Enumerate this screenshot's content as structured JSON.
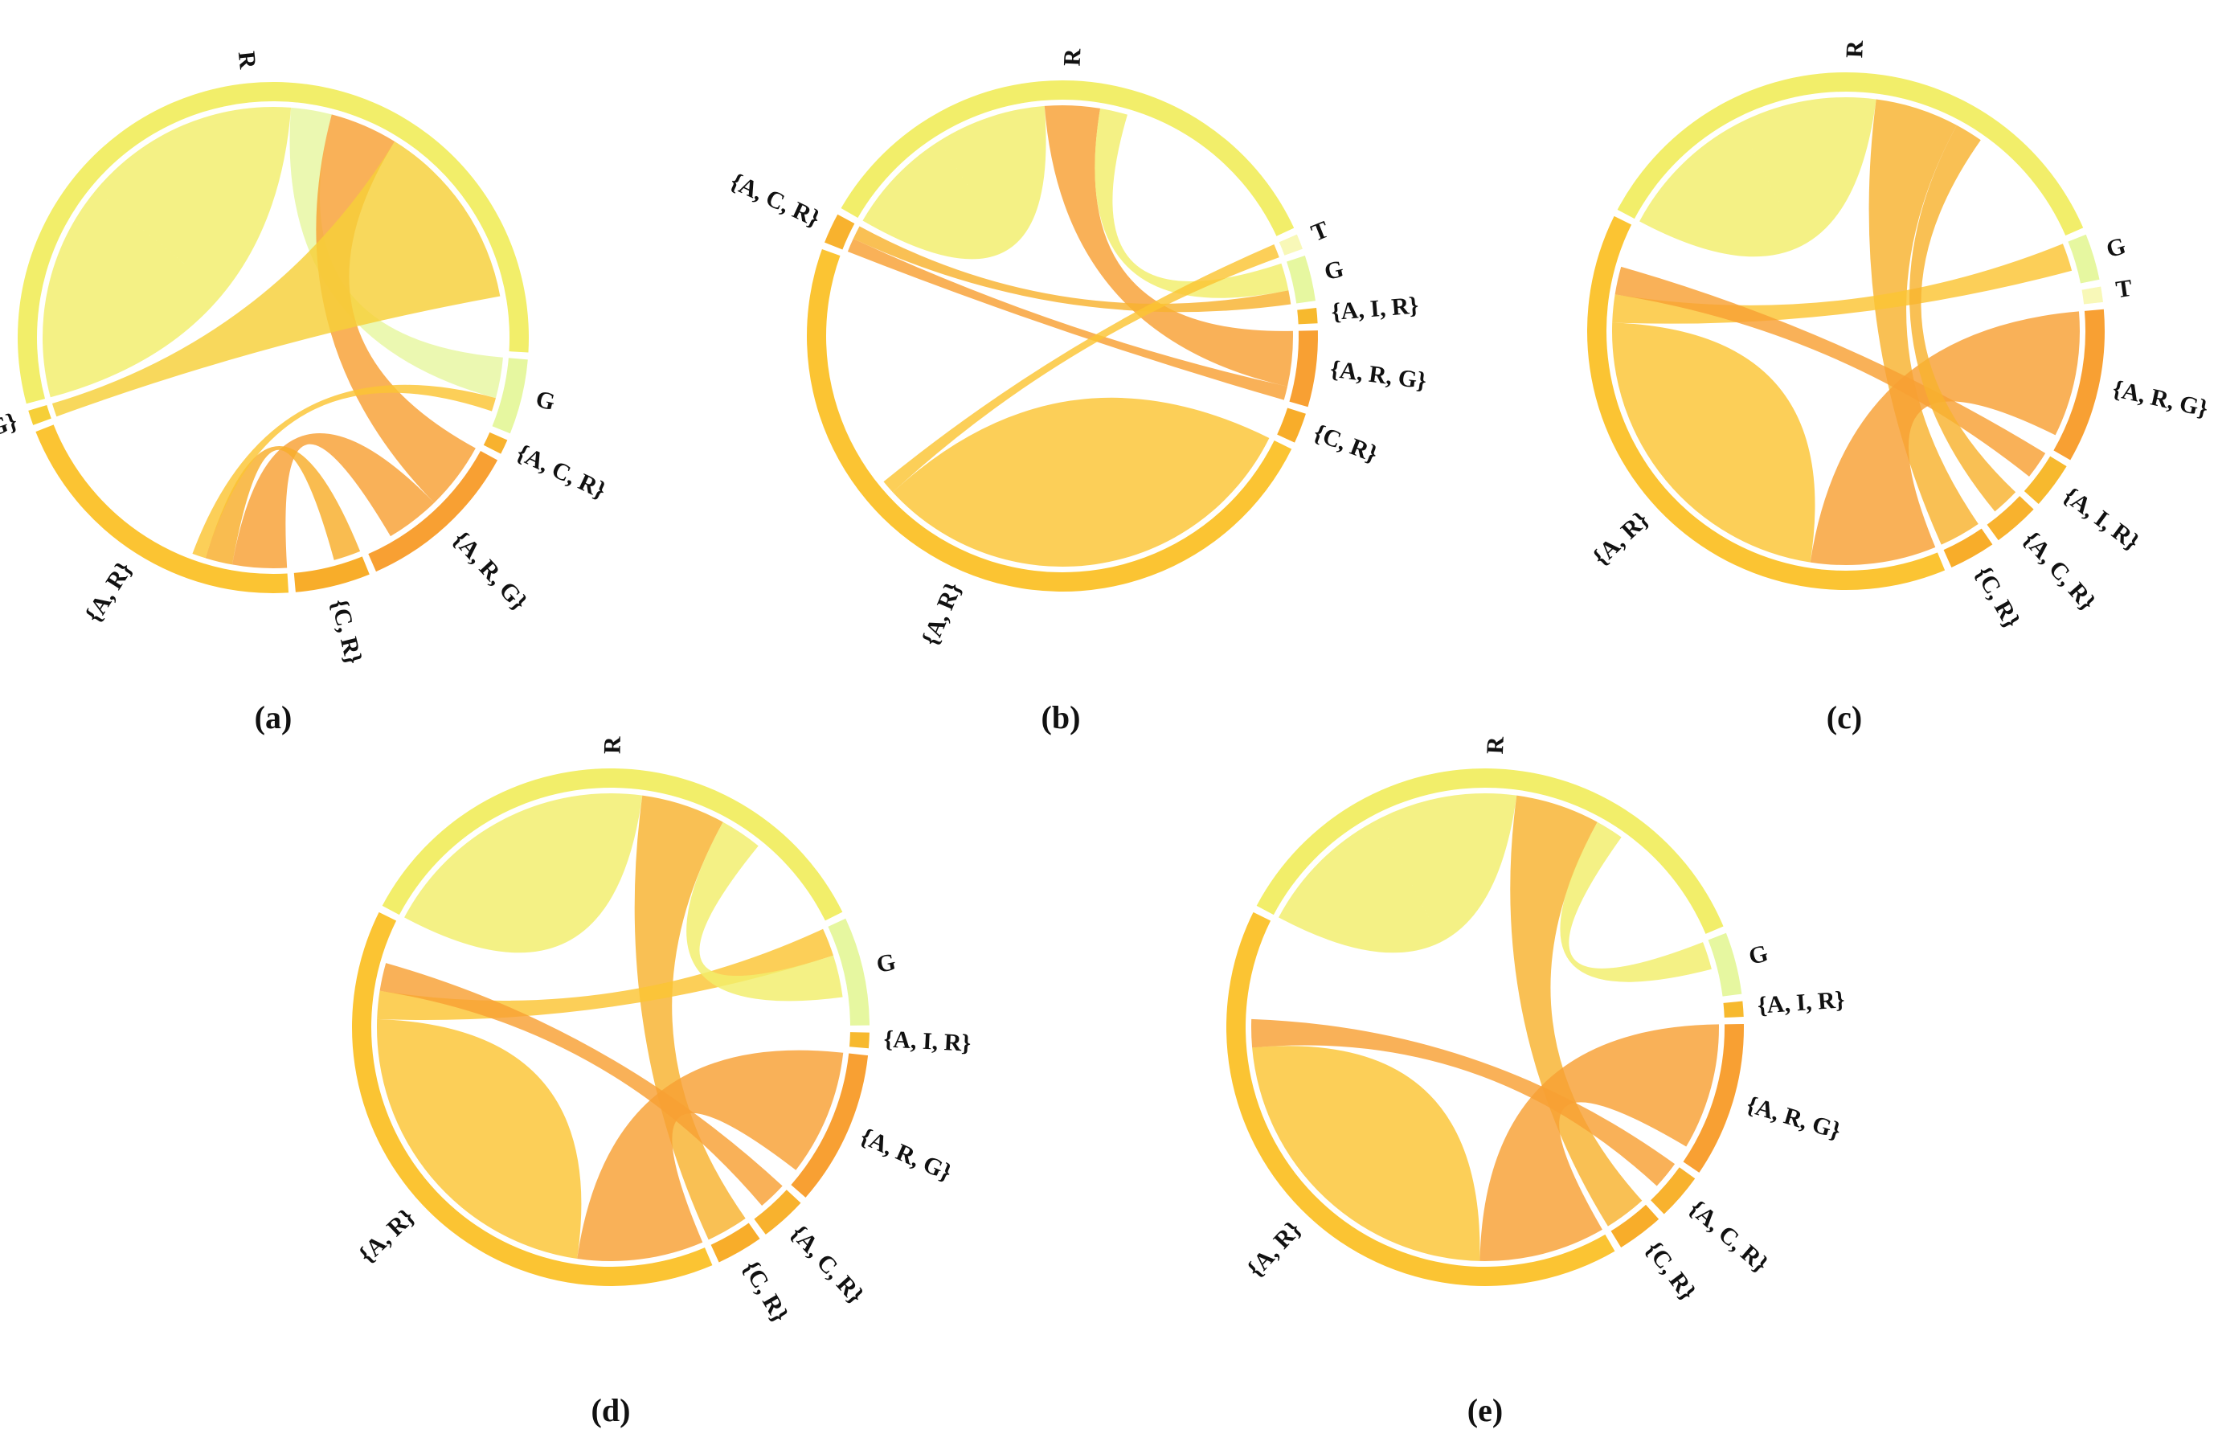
{
  "colors": {
    "R": "#f2ee6a",
    "G": "#e6f7a0",
    "T": "#f8f8b8",
    "A_R": "#fbc433",
    "A_R_G": "#f8a033",
    "C_R": "#f8ad2a",
    "A_C_R": "#f8b22e",
    "A_I_R": "#f7b92e",
    "R_G": "#f6cf38"
  },
  "diagrams": [
    {
      "id": "a",
      "panel_label": "(a)",
      "segments": [
        {
          "key": "R",
          "label": "R",
          "size": 58,
          "color_key": "R"
        },
        {
          "key": "G",
          "label": "G",
          "size": 5,
          "color_key": "G"
        },
        {
          "key": "ACR",
          "label": "{A, C, R}",
          "size": 1,
          "color_key": "A_C_R"
        },
        {
          "key": "ARG",
          "label": "{A, R, G}",
          "size": 11,
          "color_key": "A_R_G"
        },
        {
          "key": "CR",
          "label": "{C, R}",
          "size": 5,
          "color_key": "C_R"
        },
        {
          "key": "AR",
          "label": "{A, R}",
          "size": 21,
          "color_key": "A_R"
        },
        {
          "key": "RG",
          "label": "{R, G}",
          "size": 1,
          "color_key": "R_G"
        }
      ],
      "chords": [
        {
          "from": "R",
          "to": "R",
          "value": 16,
          "color_key": "R"
        },
        {
          "from": "R",
          "to": "G",
          "value": 3,
          "color_key": "G"
        },
        {
          "from": "R",
          "to": "ARG",
          "value": 5,
          "color_key": "A_R_G"
        },
        {
          "from": "R",
          "to": "RG",
          "value": 14,
          "color_key": "R_G"
        },
        {
          "from": "AR",
          "to": "ARG",
          "value": 4,
          "color_key": "A_R_G"
        },
        {
          "from": "AR",
          "to": "CR",
          "value": 2,
          "color_key": "C_R"
        },
        {
          "from": "AR",
          "to": "G",
          "value": 1,
          "color_key": "A_R"
        }
      ]
    },
    {
      "id": "b",
      "panel_label": "(b)",
      "segments": [
        {
          "key": "R",
          "label": "R",
          "size": 36,
          "color_key": "R"
        },
        {
          "key": "T",
          "label": "T",
          "size": 1,
          "color_key": "T"
        },
        {
          "key": "G",
          "label": "G",
          "size": 3,
          "color_key": "G"
        },
        {
          "key": "AIR",
          "label": "{A, I, R}",
          "size": 1,
          "color_key": "A_I_R"
        },
        {
          "key": "ARG",
          "label": "{A, R, G}",
          "size": 5,
          "color_key": "A_R_G"
        },
        {
          "key": "CR",
          "label": "{C, R}",
          "size": 2,
          "color_key": "C_R"
        },
        {
          "key": "AR",
          "label": "{A, R}",
          "size": 50,
          "color_key": "A_R"
        },
        {
          "key": "ACR",
          "label": "{A, C, R}",
          "size": 2,
          "color_key": "A_C_R"
        }
      ],
      "chords": [
        {
          "from": "R",
          "to": "R",
          "value": 8,
          "color_key": "R"
        },
        {
          "from": "R",
          "to": "ARG",
          "value": 4,
          "color_key": "A_R_G"
        },
        {
          "from": "R",
          "to": "G",
          "value": 2,
          "color_key": "R"
        },
        {
          "from": "AR",
          "to": "AR",
          "value": 16,
          "color_key": "A_R"
        },
        {
          "from": "ACR",
          "to": "ARG",
          "value": 1,
          "color_key": "A_R_G"
        },
        {
          "from": "ACR",
          "to": "G",
          "value": 1,
          "color_key": "A_C_R"
        },
        {
          "from": "AR",
          "to": "T",
          "value": 1,
          "color_key": "A_R"
        }
      ]
    },
    {
      "id": "c",
      "panel_label": "(c)",
      "segments": [
        {
          "key": "R",
          "label": "R",
          "size": 37,
          "color_key": "R"
        },
        {
          "key": "G",
          "label": "G",
          "size": 3,
          "color_key": "G"
        },
        {
          "key": "T",
          "label": "T",
          "size": 1,
          "color_key": "T"
        },
        {
          "key": "ARG",
          "label": "{A, R, G}",
          "size": 10,
          "color_key": "A_R_G"
        },
        {
          "key": "AIR",
          "label": "{A, I, R}",
          "size": 3,
          "color_key": "A_I_R"
        },
        {
          "key": "ACR",
          "label": "{A, C, R}",
          "size": 3,
          "color_key": "A_C_R"
        },
        {
          "key": "CR",
          "label": "{C, R}",
          "size": 3,
          "color_key": "C_R"
        },
        {
          "key": "AR",
          "label": "{A, R}",
          "size": 40,
          "color_key": "A_R"
        }
      ],
      "chords": [
        {
          "from": "R",
          "to": "R",
          "value": 10,
          "color_key": "R"
        },
        {
          "from": "R",
          "to": "CR",
          "value": 6,
          "color_key": "A_C_R"
        },
        {
          "from": "AR",
          "to": "ARG",
          "value": 9,
          "color_key": "A_R_G"
        },
        {
          "from": "AR",
          "to": "AR",
          "value": 12,
          "color_key": "A_R"
        },
        {
          "from": "AR",
          "to": "G",
          "value": 2,
          "color_key": "A_R"
        },
        {
          "from": "AR",
          "to": "AIR",
          "value": 2,
          "color_key": "A_R_G"
        },
        {
          "from": "R",
          "to": "ACR",
          "value": 2,
          "color_key": "A_C_R"
        }
      ]
    },
    {
      "id": "d",
      "panel_label": "(d)",
      "segments": [
        {
          "key": "R",
          "label": "R",
          "size": 36,
          "color_key": "R"
        },
        {
          "key": "G",
          "label": "G",
          "size": 7,
          "color_key": "G"
        },
        {
          "key": "AIR",
          "label": "{A, I, R}",
          "size": 1,
          "color_key": "A_I_R"
        },
        {
          "key": "ARG",
          "label": "{A, R, G}",
          "size": 10,
          "color_key": "A_R_G"
        },
        {
          "key": "ACR",
          "label": "{A, C, R}",
          "size": 3,
          "color_key": "A_C_R"
        },
        {
          "key": "CR",
          "label": "{C, R}",
          "size": 3,
          "color_key": "C_R"
        },
        {
          "key": "AR",
          "label": "{A, R}",
          "size": 40,
          "color_key": "A_R"
        }
      ],
      "chords": [
        {
          "from": "R",
          "to": "R",
          "value": 10,
          "color_key": "R"
        },
        {
          "from": "R",
          "to": "CR",
          "value": 6,
          "color_key": "A_C_R"
        },
        {
          "from": "AR",
          "to": "ARG",
          "value": 9,
          "color_key": "A_R_G"
        },
        {
          "from": "AR",
          "to": "AR",
          "value": 12,
          "color_key": "A_R"
        },
        {
          "from": "AR",
          "to": "G",
          "value": 2,
          "color_key": "A_R"
        },
        {
          "from": "AR",
          "to": "ACR",
          "value": 2,
          "color_key": "A_R_G"
        },
        {
          "from": "R",
          "to": "G",
          "value": 3,
          "color_key": "R"
        }
      ]
    },
    {
      "id": "e",
      "panel_label": "(e)",
      "segments": [
        {
          "key": "R",
          "label": "R",
          "size": 37,
          "color_key": "R"
        },
        {
          "key": "G",
          "label": "G",
          "size": 4,
          "color_key": "G"
        },
        {
          "key": "AIR",
          "label": "{A, I, R}",
          "size": 1,
          "color_key": "A_I_R"
        },
        {
          "key": "ARG",
          "label": "{A, R, G}",
          "size": 10,
          "color_key": "A_R_G"
        },
        {
          "key": "ACR",
          "label": "{A, C, R}",
          "size": 3,
          "color_key": "A_C_R"
        },
        {
          "key": "CR",
          "label": "{C, R}",
          "size": 3,
          "color_key": "C_R"
        },
        {
          "key": "AR",
          "label": "{A, R}",
          "size": 42,
          "color_key": "A_R"
        }
      ],
      "chords": [
        {
          "from": "R",
          "to": "R",
          "value": 10,
          "color_key": "R"
        },
        {
          "from": "R",
          "to": "CR",
          "value": 6,
          "color_key": "A_C_R"
        },
        {
          "from": "AR",
          "to": "ARG",
          "value": 9,
          "color_key": "A_R_G"
        },
        {
          "from": "AR",
          "to": "AR",
          "value": 12,
          "color_key": "A_R"
        },
        {
          "from": "AR",
          "to": "ACR",
          "value": 2,
          "color_key": "A_R_G"
        },
        {
          "from": "R",
          "to": "G",
          "value": 2,
          "color_key": "R"
        }
      ]
    }
  ]
}
